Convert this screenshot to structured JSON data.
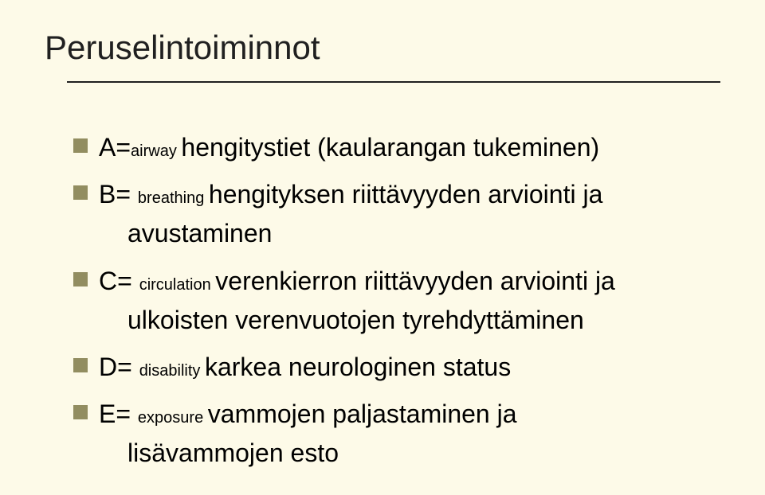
{
  "slide": {
    "background": "#fdfae8",
    "bullet_color": "#928d60",
    "text_color": "#000000",
    "title": "Peruselintoiminnot",
    "title_fontsize": 42,
    "body_fontsize": 32,
    "sub_fontsize": 20,
    "rule_color": "#202020",
    "items": [
      {
        "letter": "A=",
        "sub": "airway ",
        "rest": "hengitystiet (kaularangan tukeminen)",
        "cont": ""
      },
      {
        "letter": "B= ",
        "sub": "breathing ",
        "rest": "hengityksen riittävyyden arviointi ja",
        "cont": "avustaminen"
      },
      {
        "letter": "C= ",
        "sub": "circulation ",
        "rest": "verenkierron riittävyyden arviointi ja",
        "cont": "ulkoisten verenvuotojen tyrehdyttäminen"
      },
      {
        "letter": "D= ",
        "sub": "disability ",
        "rest": "karkea neurologinen status",
        "cont": ""
      },
      {
        "letter": "E= ",
        "sub": "exposure ",
        "rest": "vammojen paljastaminen ja",
        "cont": "lisävammojen esto"
      }
    ]
  }
}
